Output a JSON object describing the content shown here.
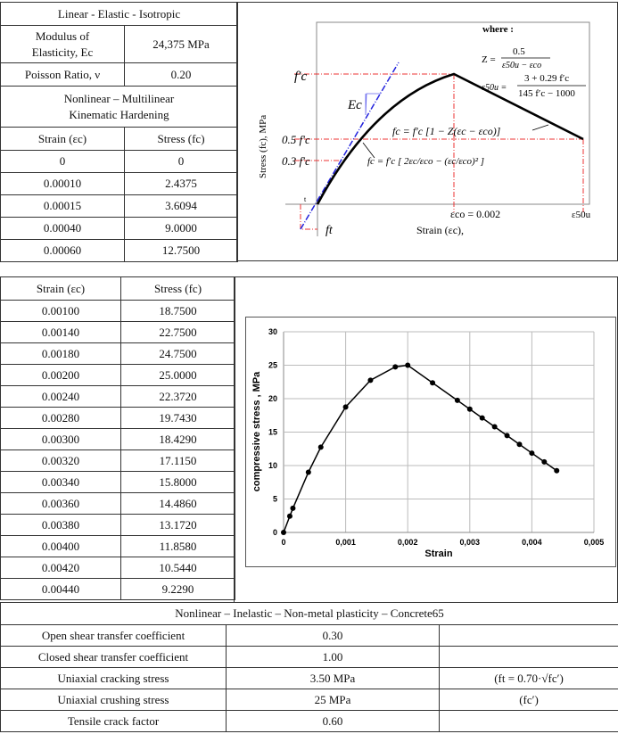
{
  "top_table": {
    "title": "Linear - Elastic - Isotropic",
    "modulus_label_1": "Modulus of",
    "modulus_label_2": "Elasticity, Ec",
    "modulus_value": "24,375 MPa",
    "poisson_label": "Poisson Ratio, ν",
    "poisson_value": "0.20",
    "nonlinear_title_1": "Nonlinear – Multilinear",
    "nonlinear_title_2": "Kinematic Hardening",
    "col_strain": "Strain (εc)",
    "col_stress": "Stress (fc)",
    "rows": [
      [
        "0",
        "0"
      ],
      [
        "0.00010",
        "2.4375"
      ],
      [
        "0.00015",
        "3.6094"
      ],
      [
        "0.00040",
        "9.0000"
      ],
      [
        "0.00060",
        "12.7500"
      ]
    ]
  },
  "diagram": {
    "where": "where :",
    "z_lhs": "Z =",
    "z_num": "0.5",
    "z_den": "ε50u − εco",
    "e50_lhs": "ε50u =",
    "e50_num": "3 + 0.29 f′c",
    "e50_den": "145 f′c − 1000",
    "fc_peak": "f′c",
    "half": "0.5 f′c",
    "third": "0.3 f′c",
    "ec": "Ec",
    "descend_eq": "fc = f′c [1 − Z(εc − εco)]",
    "ascend_eq": "fc = f′c [ 2εc/εco − (εc/εco)² ]",
    "eco": "εco = 0.002",
    "e50u": "ε50u",
    "xlabel": "Strain (εc),",
    "ylabel": "Stress (fc), MPa",
    "ft": "ft",
    "t": "t"
  },
  "mid_table": {
    "col_strain": "Strain (εc)",
    "col_stress": "Stress (fc)",
    "rows": [
      [
        "0.00100",
        "18.7500"
      ],
      [
        "0.00140",
        "22.7500"
      ],
      [
        "0.00180",
        "24.7500"
      ],
      [
        "0.00200",
        "25.0000"
      ],
      [
        "0.00240",
        "22.3720"
      ],
      [
        "0.00280",
        "19.7430"
      ],
      [
        "0.00300",
        "18.4290"
      ],
      [
        "0.00320",
        "17.1150"
      ],
      [
        "0.00340",
        "15.8000"
      ],
      [
        "0.00360",
        "14.4860"
      ],
      [
        "0.00380",
        "13.1720"
      ],
      [
        "0.00400",
        "11.8580"
      ],
      [
        "0.00420",
        "10.5440"
      ],
      [
        "0.00440",
        "9.2290"
      ]
    ]
  },
  "chart_data": {
    "type": "line",
    "title": "",
    "xlabel": "Strain",
    "ylabel": "compressive stress , MPa",
    "xlim": [
      0,
      0.005
    ],
    "ylim": [
      0,
      30
    ],
    "grid": true,
    "xticks": [
      "0",
      "0,001",
      "0,002",
      "0,003",
      "0,004",
      "0,005"
    ],
    "yticks": [
      "0",
      "5",
      "10",
      "15",
      "20",
      "25",
      "30"
    ],
    "x": [
      0,
      0.0001,
      0.00015,
      0.0004,
      0.0006,
      0.001,
      0.0014,
      0.0018,
      0.002,
      0.0024,
      0.0028,
      0.003,
      0.0032,
      0.0034,
      0.0036,
      0.0038,
      0.004,
      0.0042,
      0.0044
    ],
    "y": [
      0,
      2.4375,
      3.6094,
      9,
      12.75,
      18.75,
      22.75,
      24.75,
      25,
      22.372,
      19.743,
      18.429,
      17.115,
      15.8,
      14.486,
      13.172,
      11.858,
      10.544,
      9.229
    ]
  },
  "bottom_table": {
    "title": "Nonlinear – Inelastic – Non-metal plasticity – Concrete65",
    "rows": [
      [
        "Open shear transfer coefficient",
        "0.30",
        ""
      ],
      [
        "Closed shear transfer coefficient",
        "1.00",
        ""
      ],
      [
        "Uniaxial cracking stress",
        "3.50 MPa",
        "(ft = 0.70·√fc′)"
      ],
      [
        "Uniaxial crushing stress",
        "25 MPa",
        "(fc′)"
      ],
      [
        "Tensile crack factor",
        "0.60",
        ""
      ]
    ]
  }
}
